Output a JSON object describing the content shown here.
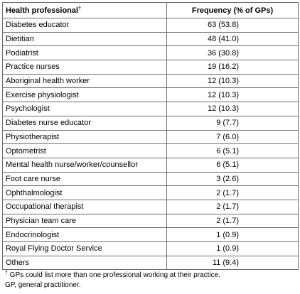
{
  "table": {
    "header": [
      {
        "text": "Health professional",
        "mark": "†"
      },
      {
        "text": "Frequency (% of GPs)"
      }
    ],
    "rows": [
      [
        "Diabetes educator",
        "63 (53.8)"
      ],
      [
        "Dietitian",
        "48 (41.0)"
      ],
      [
        "Podiatrist",
        "36 (30.8)"
      ],
      [
        "Practice nurses",
        "19 (16.2)"
      ],
      [
        "Aboriginal health worker",
        "12 (10.3)"
      ],
      [
        "Exercise physiologist",
        "12 (10.3)"
      ],
      [
        "Psychologist",
        "12 (10.3)"
      ],
      [
        "Diabetes nurse educator",
        "9 (7.7)"
      ],
      [
        "Physiotherapist",
        "7 (6.0)"
      ],
      [
        "Optometrist",
        "6 (5.1)"
      ],
      [
        "Mental health nurse/worker/counsellor",
        "6 (5.1)"
      ],
      [
        "Foot care nurse",
        "3 (2.6)"
      ],
      [
        "Ophthalmologist",
        "2 (1.7)"
      ],
      [
        "Occupational therapist",
        "2 (1.7)"
      ],
      [
        "Physician team care",
        "2 (1.7)"
      ],
      [
        "Endocrinologist",
        "1 (0.9)"
      ],
      [
        "Royal Flying Doctor Service",
        "1 (0.9)"
      ],
      [
        "Others",
        "11 (9.4)"
      ]
    ]
  },
  "footnotes": [
    {
      "mark": "†",
      "text": " GPs could list more than one professional working at their practice."
    },
    {
      "text": "GP, general practitioner."
    }
  ]
}
